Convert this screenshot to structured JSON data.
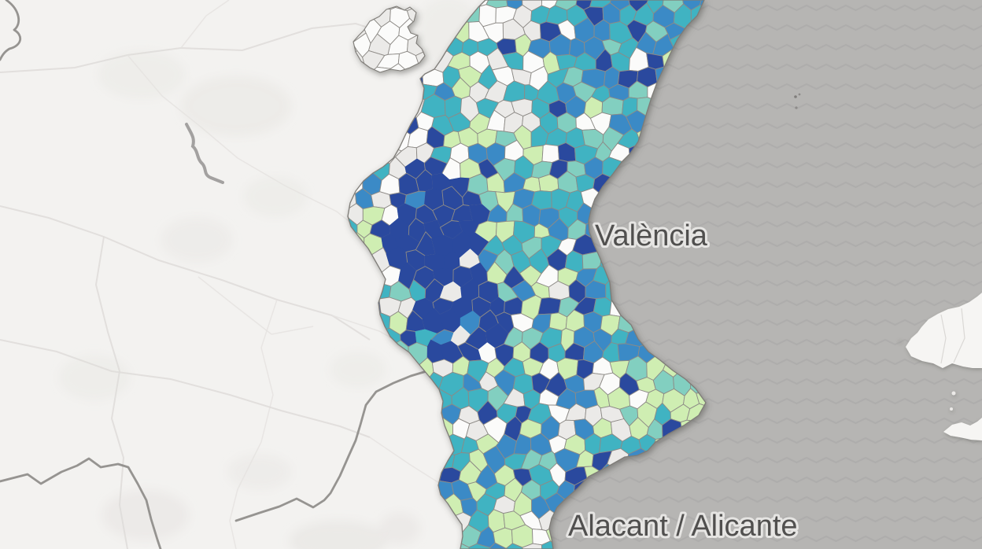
{
  "labels": {
    "valencia": "València",
    "alacant": "Alacant / Alicante"
  },
  "palette": {
    "no_data": "#ebeae8",
    "white": "#fbfbfa",
    "pale_green": "#cfeeb2",
    "aqua": "#82cfc0",
    "teal": "#3fb3c2",
    "medium_blue": "#3a8ac6",
    "navy": "#2a4a9e"
  },
  "base_colors": {
    "land": "#f3f2f0",
    "sea": "#b6b5b3",
    "waves": "#adacab",
    "municipal_border": "#8d8a86",
    "region_outline": "#7e7b77",
    "admin_boundary": "#908e8b",
    "label_text": "#4c4b4a",
    "label_halo": "#e9e8e6"
  }
}
